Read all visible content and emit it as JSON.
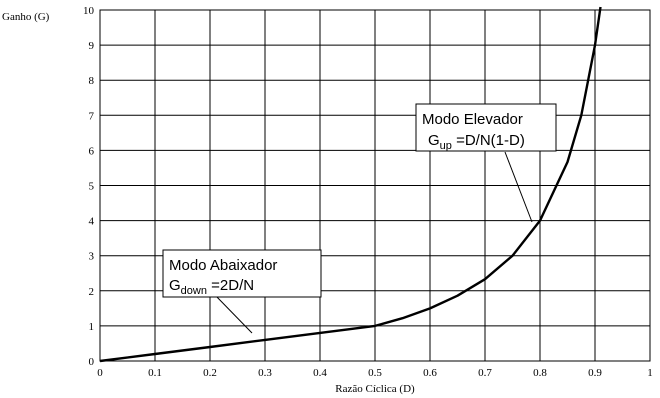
{
  "chart_data": {
    "type": "line",
    "xlabel": "Razão Cíclica (D)",
    "ylabel": "Ganho (G)",
    "xlim": [
      0,
      1
    ],
    "ylim": [
      0,
      10
    ],
    "x_ticks": [
      "0",
      "0.1",
      "0.2",
      "0.3",
      "0.4",
      "0.5",
      "0.6",
      "0.7",
      "0.8",
      "0.9",
      "1"
    ],
    "y_ticks": [
      "0",
      "1",
      "2",
      "3",
      "4",
      "5",
      "6",
      "7",
      "8",
      "9",
      "10"
    ],
    "grid": true,
    "reference_line_x": 0.5,
    "series": [
      {
        "x": [
          0,
          0.1,
          0.2,
          0.3,
          0.4,
          0.5,
          0.55,
          0.6,
          0.65,
          0.7,
          0.75,
          0.8,
          0.85,
          0.875,
          0.9,
          0.91
        ],
        "y": [
          0,
          0.2,
          0.4,
          0.6,
          0.8,
          1.0,
          1.22,
          1.5,
          1.86,
          2.33,
          3.0,
          4.0,
          5.67,
          7.0,
          9.0,
          10.1
        ]
      }
    ],
    "annotations": [
      {
        "line1": "Modo Abaixador",
        "prefix": "G",
        "sub": "down",
        "formula": " =2D/N"
      },
      {
        "line1": "Modo Elevador",
        "prefix": "G",
        "sub": "up",
        "formula": " =D/N(1-D)"
      }
    ]
  }
}
